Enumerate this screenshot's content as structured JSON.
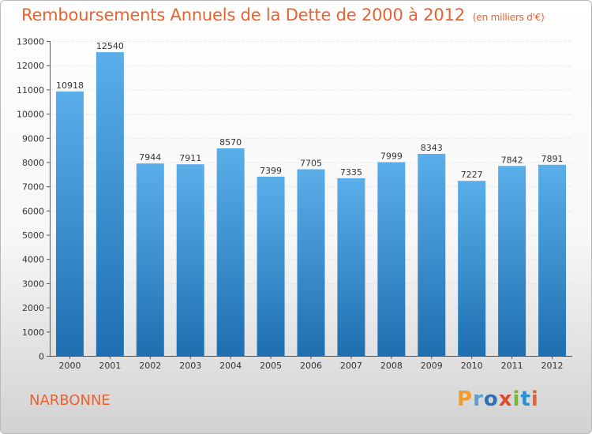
{
  "header": {
    "title": "Remboursements Annuels de la Dette de 2000 à 2012",
    "unit_note": "(en milliers d'€)"
  },
  "footer": {
    "city": "NARBONNE",
    "logo": "Proxiti"
  },
  "colors": {
    "title": "#e8622f",
    "bar_top": "#5aaeea",
    "bar_bottom": "#1f6fb0",
    "logo_letters": [
      "#f39c2a",
      "#5a9fd4",
      "#2e6fb7",
      "#e04a2f",
      "#7ab637",
      "#2e8fd0",
      "#e8622f"
    ]
  },
  "chart_data": {
    "type": "bar",
    "title": "Remboursements Annuels de la Dette de 2000 à 2012",
    "categories": [
      "2000",
      "2001",
      "2002",
      "2003",
      "2004",
      "2005",
      "2006",
      "2007",
      "2008",
      "2009",
      "2010",
      "2011",
      "2012"
    ],
    "values": [
      10918,
      12540,
      7944,
      7911,
      8570,
      7399,
      7705,
      7335,
      7999,
      8343,
      7227,
      7842,
      7891
    ],
    "data_labels": [
      "10918",
      "12540",
      "7944",
      "7911",
      "8570",
      "7399",
      "7705",
      "7335",
      "7999",
      "8343",
      "7227",
      "7842",
      "7891"
    ],
    "ylim": [
      0,
      13000
    ],
    "yticks": [
      0,
      1000,
      2000,
      3000,
      4000,
      5000,
      6000,
      7000,
      8000,
      9000,
      10000,
      11000,
      12000,
      13000
    ],
    "grid": true,
    "xlabel": "",
    "ylabel": ""
  }
}
